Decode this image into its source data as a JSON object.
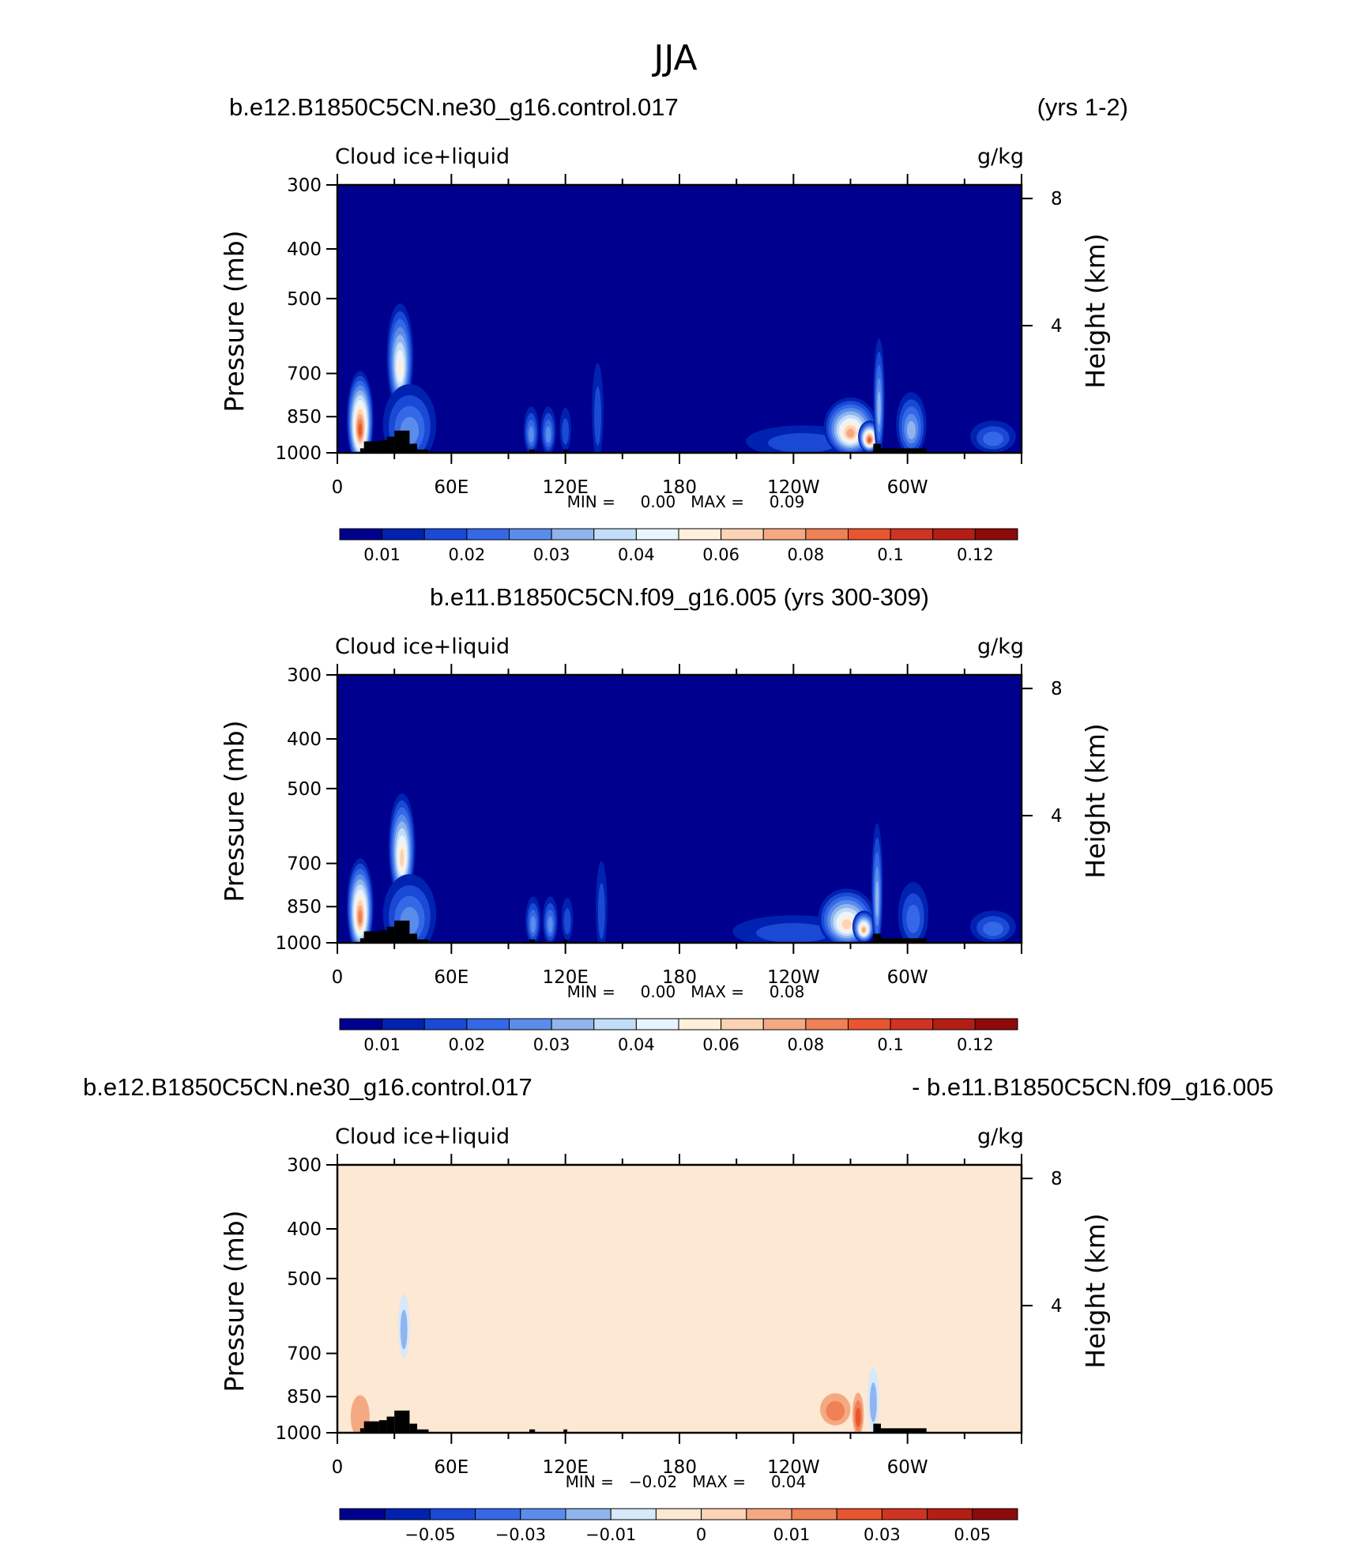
{
  "page": {
    "title": "JJA",
    "bg_color": "#ffffff",
    "land_color": "#000000"
  },
  "colormaps": {
    "absolute": [
      "#00008f",
      "#0022b0",
      "#1a49d6",
      "#3568e6",
      "#5a8ceb",
      "#8fb4ee",
      "#c2ddf8",
      "#e8f4ff",
      "#fff0dc",
      "#fcd3b5",
      "#f5a983",
      "#f08055",
      "#e8552e",
      "#d13322",
      "#b51d14",
      "#8e0a0a"
    ],
    "difference": [
      "#00008f",
      "#0022b0",
      "#1a49d6",
      "#3568e6",
      "#5a8ceb",
      "#8fb4ee",
      "#d6e9fb",
      "#fde8d3",
      "#fcd3b5",
      "#f5a983",
      "#f08055",
      "#e8552e",
      "#d13322",
      "#b51d14",
      "#8e0a0a"
    ]
  },
  "panels": [
    {
      "case_title_left": "b.e12.B1850C5CN.ne30_g16.control.017",
      "case_title_right": "(yrs 1-2)",
      "variable_label": "Cloud ice+liquid",
      "units": "g/kg",
      "minmax": "MIN =     0.00   MAX =     0.09",
      "colorbar_labels": [
        {
          "after_box": 1,
          "text": "0.01"
        },
        {
          "after_box": 3,
          "text": "0.02"
        },
        {
          "after_box": 5,
          "text": "0.03"
        },
        {
          "after_box": 7,
          "text": "0.04"
        },
        {
          "after_box": 9,
          "text": "0.06"
        },
        {
          "after_box": 11,
          "text": "0.08"
        },
        {
          "after_box": 13,
          "text": "0.1"
        },
        {
          "after_box": 15,
          "text": "0.12"
        }
      ]
    },
    {
      "case_title_center": "b.e11.B1850C5CN.f09_g16.005 (yrs 300-309)",
      "variable_label": "Cloud ice+liquid",
      "units": "g/kg",
      "minmax": "MIN =     0.00   MAX =     0.08",
      "colorbar_labels": [
        {
          "after_box": 1,
          "text": "0.01"
        },
        {
          "after_box": 3,
          "text": "0.02"
        },
        {
          "after_box": 5,
          "text": "0.03"
        },
        {
          "after_box": 7,
          "text": "0.04"
        },
        {
          "after_box": 9,
          "text": "0.06"
        },
        {
          "after_box": 11,
          "text": "0.08"
        },
        {
          "after_box": 13,
          "text": "0.1"
        },
        {
          "after_box": 15,
          "text": "0.12"
        }
      ]
    },
    {
      "case_title_left": "b.e12.B1850C5CN.ne30_g16.control.017",
      "case_title_right": "- b.e11.B1850C5CN.f09_g16.005",
      "variable_label": "Cloud ice+liquid",
      "units": "g/kg",
      "minmax": "MIN =   −0.02   MAX =     0.04",
      "colorbar_labels": [
        {
          "after_box": 2,
          "text": "−0.05"
        },
        {
          "after_box": 4,
          "text": "−0.03"
        },
        {
          "after_box": 6,
          "text": "−0.01"
        },
        {
          "after_box": 8,
          "text": "0"
        },
        {
          "after_box": 10,
          "text": "0.01"
        },
        {
          "after_box": 12,
          "text": "0.03"
        },
        {
          "after_box": 14,
          "text": "0.05"
        }
      ]
    }
  ],
  "chart_data": [
    {
      "type": "heatmap",
      "title": "b.e12.B1850C5CN.ne30_g16.control.017 (yrs 1-2)",
      "variable": "Cloud ice+liquid",
      "units": "g/kg",
      "xlabel": "",
      "ylabel": "Pressure (mb)",
      "y2label": "Height (km)",
      "x_range": [
        0,
        360
      ],
      "x_ticks": [
        "0",
        "60E",
        "120E",
        "180",
        "120W",
        "60W"
      ],
      "y_range": [
        1000,
        300
      ],
      "y_scale": "log",
      "y_ticks": [
        300,
        400,
        500,
        700,
        850,
        1000
      ],
      "y2_ticks": [
        "8",
        "4"
      ],
      "min": 0.0,
      "max": 0.09,
      "contour_levels": [
        0.005,
        0.01,
        0.015,
        0.02,
        0.025,
        0.03,
        0.035,
        0.04,
        0.05,
        0.06,
        0.07,
        0.08,
        0.09,
        0.1,
        0.11,
        0.12
      ],
      "features": [
        {
          "lon": 12,
          "p": 860,
          "w": 7,
          "h": 0.18,
          "value": 0.085
        },
        {
          "lon": 33,
          "p": 650,
          "w": 7,
          "h": 0.2,
          "value": 0.045
        },
        {
          "lon": 38,
          "p": 880,
          "w": 14,
          "h": 0.15,
          "value": 0.02
        },
        {
          "lon": 102,
          "p": 905,
          "w": 4,
          "h": 0.09,
          "value": 0.02
        },
        {
          "lon": 111,
          "p": 905,
          "w": 4,
          "h": 0.09,
          "value": 0.02
        },
        {
          "lon": 120,
          "p": 900,
          "w": 3,
          "h": 0.08,
          "value": 0.012
        },
        {
          "lon": 137,
          "p": 830,
          "w": 3,
          "h": 0.18,
          "value": 0.01
        },
        {
          "lon": 245,
          "p": 950,
          "w": 30,
          "h": 0.06,
          "value": 0.012
        },
        {
          "lon": 270,
          "p": 890,
          "w": 14,
          "h": 0.11,
          "value": 0.06
        },
        {
          "lon": 280,
          "p": 930,
          "w": 6,
          "h": 0.06,
          "value": 0.08
        },
        {
          "lon": 285,
          "p": 780,
          "w": 3,
          "h": 0.22,
          "value": 0.025
        },
        {
          "lon": 302,
          "p": 880,
          "w": 8,
          "h": 0.12,
          "value": 0.025
        },
        {
          "lon": 345,
          "p": 930,
          "w": 12,
          "h": 0.06,
          "value": 0.018
        }
      ]
    },
    {
      "type": "heatmap",
      "title": "b.e11.B1850C5CN.f09_g16.005 (yrs 300-309)",
      "variable": "Cloud ice+liquid",
      "units": "g/kg",
      "xlabel": "",
      "ylabel": "Pressure (mb)",
      "y2label": "Height (km)",
      "x_range": [
        0,
        360
      ],
      "x_ticks": [
        "0",
        "60E",
        "120E",
        "180",
        "120W",
        "60W"
      ],
      "y_range": [
        1000,
        300
      ],
      "y_scale": "log",
      "y_ticks": [
        300,
        400,
        500,
        700,
        850,
        1000
      ],
      "y2_ticks": [
        "8",
        "4"
      ],
      "min": 0.0,
      "max": 0.08,
      "contour_levels": [
        0.005,
        0.01,
        0.015,
        0.02,
        0.025,
        0.03,
        0.035,
        0.04,
        0.05,
        0.06,
        0.07,
        0.08,
        0.09,
        0.1,
        0.11,
        0.12
      ],
      "features": [
        {
          "lon": 12,
          "p": 850,
          "w": 7,
          "h": 0.18,
          "value": 0.075
        },
        {
          "lon": 34,
          "p": 650,
          "w": 7,
          "h": 0.2,
          "value": 0.05
        },
        {
          "lon": 38,
          "p": 880,
          "w": 14,
          "h": 0.15,
          "value": 0.02
        },
        {
          "lon": 103,
          "p": 905,
          "w": 4,
          "h": 0.09,
          "value": 0.02
        },
        {
          "lon": 112,
          "p": 905,
          "w": 4,
          "h": 0.09,
          "value": 0.02
        },
        {
          "lon": 121,
          "p": 900,
          "w": 3,
          "h": 0.08,
          "value": 0.012
        },
        {
          "lon": 139,
          "p": 850,
          "w": 3,
          "h": 0.17,
          "value": 0.01
        },
        {
          "lon": 240,
          "p": 950,
          "w": 32,
          "h": 0.06,
          "value": 0.012
        },
        {
          "lon": 268,
          "p": 895,
          "w": 15,
          "h": 0.11,
          "value": 0.05
        },
        {
          "lon": 277,
          "p": 930,
          "w": 6,
          "h": 0.06,
          "value": 0.06
        },
        {
          "lon": 284,
          "p": 780,
          "w": 3,
          "h": 0.24,
          "value": 0.025
        },
        {
          "lon": 303,
          "p": 880,
          "w": 8,
          "h": 0.12,
          "value": 0.018
        },
        {
          "lon": 345,
          "p": 930,
          "w": 12,
          "h": 0.06,
          "value": 0.018
        }
      ]
    },
    {
      "type": "heatmap",
      "title": "b.e12.B1850C5CN.ne30_g16.control.017 - b.e11.B1850C5CN.f09_g16.005",
      "variable": "Cloud ice+liquid",
      "units": "g/kg",
      "xlabel": "",
      "ylabel": "Pressure (mb)",
      "y2label": "Height (km)",
      "x_range": [
        0,
        360
      ],
      "x_ticks": [
        "0",
        "60E",
        "120E",
        "180",
        "120W",
        "60W"
      ],
      "y_range": [
        1000,
        300
      ],
      "y_scale": "log",
      "y_ticks": [
        300,
        400,
        500,
        700,
        850,
        1000
      ],
      "y2_ticks": [
        "8",
        "4"
      ],
      "min": -0.02,
      "max": 0.04,
      "contour_levels": [
        -0.06,
        -0.05,
        -0.04,
        -0.03,
        -0.02,
        -0.01,
        -0.005,
        0,
        0.005,
        0.01,
        0.02,
        0.03,
        0.04,
        0.05,
        0.06
      ],
      "features": [
        {
          "lon": 12,
          "p": 930,
          "w": 5,
          "h": 0.08,
          "value": 0.008
        },
        {
          "lon": 35,
          "p": 620,
          "w": 3,
          "h": 0.12,
          "value": -0.01
        },
        {
          "lon": 25,
          "p": 860,
          "w": 18,
          "h": 0.12,
          "value": 0.003
        },
        {
          "lon": 50,
          "p": 350,
          "w": 3,
          "h": 0.07,
          "value": 0.002
        },
        {
          "lon": 80,
          "p": 860,
          "w": 14,
          "h": 0.08,
          "value": 0.002
        },
        {
          "lon": 140,
          "p": 780,
          "w": 4,
          "h": 0.25,
          "value": 0.002
        },
        {
          "lon": 255,
          "p": 900,
          "w": 6,
          "h": 0.06,
          "value": 0.003
        },
        {
          "lon": 262,
          "p": 900,
          "w": 8,
          "h": 0.06,
          "value": 0.012
        },
        {
          "lon": 274,
          "p": 920,
          "w": 3,
          "h": 0.08,
          "value": 0.02
        },
        {
          "lon": 282,
          "p": 860,
          "w": 3,
          "h": 0.12,
          "value": -0.015
        },
        {
          "lon": 302,
          "p": 560,
          "w": 4,
          "h": 0.12,
          "value": 0.003
        },
        {
          "lon": 340,
          "p": 850,
          "w": 14,
          "h": 0.12,
          "value": 0.003
        }
      ]
    }
  ]
}
